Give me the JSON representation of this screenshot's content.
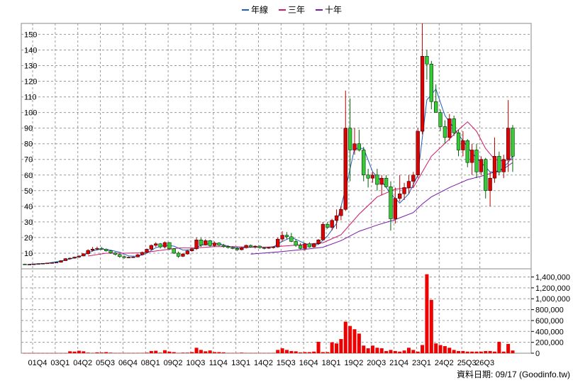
{
  "legend": [
    {
      "label": "年線",
      "color": "#1f5fbf"
    },
    {
      "label": "三年",
      "color": "#d0186a"
    },
    {
      "label": "十年",
      "color": "#7a1aa8"
    }
  ],
  "footer": "資料日期: 09/17  (Goodinfo.tw)",
  "chart_data": {
    "type": "candlestick+bar",
    "price_panel": {
      "ylim": [
        0,
        157
      ],
      "yticks": [
        10,
        20,
        30,
        40,
        50,
        60,
        70,
        80,
        90,
        100,
        110,
        120,
        130,
        140,
        150
      ],
      "grid": true,
      "candles": [
        [
          0,
          3.0,
          3.3,
          2.6,
          2.8
        ],
        [
          1,
          2.8,
          3.0,
          2.6,
          2.9
        ],
        [
          2,
          3.0,
          3.2,
          2.8,
          3.1
        ],
        [
          3,
          3.1,
          3.4,
          3.0,
          3.3
        ],
        [
          4,
          3.3,
          3.6,
          3.1,
          3.5
        ],
        [
          5,
          3.5,
          3.8,
          3.3,
          3.7
        ],
        [
          6,
          3.7,
          4.0,
          3.5,
          3.9
        ],
        [
          7,
          3.9,
          4.4,
          3.7,
          4.2
        ],
        [
          8,
          4.2,
          5.5,
          4.0,
          5.2
        ],
        [
          9,
          5.2,
          6.8,
          5.0,
          6.5
        ],
        [
          10,
          6.5,
          7.2,
          6.0,
          6.8
        ],
        [
          11,
          6.8,
          7.8,
          6.5,
          7.5
        ],
        [
          12,
          7.5,
          8.5,
          7.0,
          8.2
        ],
        [
          13,
          8.2,
          10.0,
          8.0,
          9.6
        ],
        [
          14,
          9.6,
          12.5,
          9.0,
          11.8
        ],
        [
          15,
          11.8,
          14.0,
          11.0,
          12.6
        ],
        [
          16,
          12.6,
          14.2,
          12.0,
          13.1
        ],
        [
          17,
          13.1,
          14.0,
          12.0,
          12.6
        ],
        [
          18,
          12.6,
          13.0,
          11.0,
          11.5
        ],
        [
          19,
          11.5,
          12.0,
          9.6,
          10.2
        ],
        [
          20,
          10.2,
          10.8,
          8.5,
          9.2
        ],
        [
          21,
          9.2,
          9.8,
          7.0,
          7.8
        ],
        [
          22,
          7.8,
          8.5,
          6.5,
          7.2
        ],
        [
          23,
          7.2,
          7.8,
          6.8,
          7.4
        ],
        [
          24,
          7.4,
          8.0,
          7.0,
          7.6
        ],
        [
          25,
          7.6,
          9.5,
          7.3,
          9.0
        ],
        [
          26,
          9.0,
          11.0,
          8.5,
          10.5
        ],
        [
          27,
          10.5,
          13.0,
          10.0,
          12.5
        ],
        [
          28,
          12.5,
          15.5,
          12.0,
          15.0
        ],
        [
          29,
          15.0,
          17.0,
          14.0,
          16.0
        ],
        [
          30,
          16.0,
          16.5,
          13.0,
          14.0
        ],
        [
          31,
          14.0,
          17.5,
          13.0,
          16.8
        ],
        [
          32,
          16.8,
          17.0,
          12.0,
          12.8
        ],
        [
          33,
          12.8,
          13.2,
          9.5,
          10.0
        ],
        [
          34,
          10.0,
          11.0,
          7.0,
          8.0
        ],
        [
          35,
          8.0,
          10.0,
          7.5,
          9.5
        ],
        [
          36,
          9.5,
          12.0,
          9.0,
          11.5
        ],
        [
          37,
          11.5,
          13.5,
          11.0,
          12.8
        ],
        [
          38,
          12.8,
          20.0,
          12.0,
          18.5
        ],
        [
          39,
          18.5,
          19.8,
          14.0,
          15.2
        ],
        [
          40,
          15.2,
          19.0,
          15.0,
          18.0
        ],
        [
          41,
          18.0,
          18.5,
          14.0,
          14.8
        ],
        [
          42,
          14.8,
          17.5,
          14.0,
          16.5
        ],
        [
          43,
          16.5,
          17.0,
          14.5,
          15.0
        ],
        [
          44,
          15.0,
          16.0,
          13.5,
          14.2
        ],
        [
          45,
          14.2,
          15.0,
          13.0,
          13.6
        ],
        [
          46,
          13.6,
          14.5,
          12.5,
          13.0
        ],
        [
          47,
          13.0,
          14.0,
          11.5,
          12.2
        ],
        [
          48,
          12.2,
          14.0,
          11.8,
          13.5
        ],
        [
          49,
          13.5,
          15.5,
          13.0,
          15.0
        ],
        [
          50,
          15.0,
          15.5,
          13.5,
          14.0
        ],
        [
          51,
          14.0,
          15.0,
          13.0,
          14.5
        ],
        [
          52,
          14.5,
          15.0,
          13.0,
          13.5
        ],
        [
          53,
          13.5,
          14.0,
          12.5,
          13.2
        ],
        [
          54,
          13.2,
          14.0,
          12.8,
          13.6
        ],
        [
          55,
          13.6,
          14.5,
          13.0,
          14.0
        ],
        [
          56,
          14.0,
          20.0,
          13.5,
          19.0
        ],
        [
          57,
          19.0,
          24.0,
          17.5,
          21.5
        ],
        [
          58,
          21.5,
          23.5,
          19.0,
          20.5
        ],
        [
          59,
          20.5,
          23.0,
          17.0,
          17.5
        ],
        [
          60,
          17.5,
          19.0,
          14.0,
          15.0
        ],
        [
          61,
          15.0,
          16.5,
          12.5,
          13.0
        ],
        [
          62,
          13.0,
          16.5,
          11.5,
          16.0
        ],
        [
          63,
          16.0,
          17.0,
          13.5,
          14.0
        ],
        [
          64,
          14.0,
          16.5,
          13.5,
          16.0
        ],
        [
          65,
          16.0,
          19.0,
          15.5,
          18.5
        ],
        [
          66,
          18.5,
          30.0,
          18.0,
          28.5
        ],
        [
          67,
          28.5,
          30.0,
          25.5,
          26.5
        ],
        [
          68,
          26.5,
          32.0,
          24.5,
          31.0
        ],
        [
          69,
          31.0,
          38.0,
          25.5,
          34.0
        ],
        [
          70,
          34.0,
          40.0,
          31.0,
          38.0
        ],
        [
          71,
          38.0,
          114.0,
          37.0,
          90.0
        ],
        [
          72,
          90.0,
          109.0,
          56.0,
          76.0
        ],
        [
          73,
          76.0,
          90.0,
          73.0,
          80.0
        ],
        [
          74,
          80.0,
          89.0,
          75.0,
          76.0
        ],
        [
          75,
          76.0,
          78.0,
          56.0,
          60.0
        ],
        [
          76,
          60.0,
          64.0,
          52.0,
          58.0
        ],
        [
          77,
          58.0,
          62.0,
          55.0,
          60.0
        ],
        [
          78,
          60.0,
          64.0,
          50.0,
          54.0
        ],
        [
          79,
          54.0,
          60.0,
          47.0,
          58.0
        ],
        [
          80,
          58.0,
          60.0,
          52.0,
          52.5
        ],
        [
          81,
          52.5,
          56.0,
          24.5,
          32.0
        ],
        [
          82,
          32.0,
          52.0,
          29.0,
          45.0
        ],
        [
          83,
          45.0,
          60.0,
          43.0,
          48.0
        ],
        [
          84,
          48.0,
          55.0,
          44.0,
          52.0
        ],
        [
          85,
          52.0,
          60.0,
          48.0,
          56.0
        ],
        [
          86,
          56.0,
          62.0,
          52.0,
          60.0
        ],
        [
          87,
          60.0,
          90.0,
          58.0,
          88.0
        ],
        [
          88,
          88.0,
          157.0,
          86.0,
          136.0
        ],
        [
          89,
          136.0,
          140.0,
          121.0,
          131.0
        ],
        [
          90,
          131.0,
          133.0,
          102.0,
          107.0
        ],
        [
          91,
          107.0,
          118.0,
          101.0,
          100.0
        ],
        [
          92,
          100.0,
          102.0,
          88.0,
          91.0
        ],
        [
          93,
          91.0,
          95.0,
          80.0,
          84.0
        ],
        [
          94,
          84.0,
          99.0,
          82.0,
          96.0
        ],
        [
          95,
          96.0,
          98.0,
          85.0,
          87.0
        ],
        [
          96,
          87.0,
          89.0,
          72.0,
          76.0
        ],
        [
          97,
          76.0,
          88.0,
          72.0,
          82.0
        ],
        [
          98,
          82.0,
          83.0,
          65.0,
          68.0
        ],
        [
          99,
          68.0,
          80.0,
          60.0,
          76.0
        ],
        [
          100,
          76.0,
          80.0,
          58.0,
          62.0
        ],
        [
          101,
          62.0,
          72.0,
          60.0,
          70.0
        ],
        [
          102,
          70.0,
          71.0,
          45.0,
          50.0
        ],
        [
          103,
          50.0,
          62.0,
          40.0,
          58.0
        ],
        [
          104,
          58.0,
          84.0,
          55.0,
          72.0
        ],
        [
          105,
          72.0,
          75.0,
          60.0,
          62.0
        ],
        [
          106,
          62.0,
          73.0,
          58.0,
          70.0
        ],
        [
          107,
          70.0,
          108.0,
          62.0,
          90.0
        ],
        [
          108,
          90.0,
          92.0,
          62.0,
          72.0
        ]
      ],
      "moving_averages": {
        "年線": [
          [
            1,
            2.9
          ],
          [
            5,
            3.6
          ],
          [
            9,
            5.5
          ],
          [
            13,
            8.7
          ],
          [
            15,
            11.5
          ],
          [
            17,
            12.7
          ],
          [
            19,
            11.9
          ],
          [
            21,
            10.6
          ],
          [
            23,
            8.2
          ],
          [
            25,
            8.0
          ],
          [
            27,
            10.0
          ],
          [
            29,
            13.5
          ],
          [
            31,
            15.0
          ],
          [
            33,
            14.5
          ],
          [
            35,
            12.0
          ],
          [
            37,
            12.3
          ],
          [
            39,
            15.0
          ],
          [
            41,
            16.2
          ],
          [
            43,
            16.0
          ],
          [
            45,
            14.5
          ],
          [
            47,
            13.3
          ],
          [
            49,
            13.6
          ],
          [
            51,
            14.0
          ],
          [
            53,
            13.8
          ],
          [
            55,
            14.0
          ],
          [
            57,
            17.5
          ],
          [
            59,
            20.2
          ],
          [
            61,
            17.5
          ],
          [
            63,
            15.0
          ],
          [
            65,
            15.5
          ],
          [
            67,
            21.0
          ],
          [
            69,
            29.0
          ],
          [
            71,
            51.0
          ],
          [
            73,
            77.0
          ],
          [
            75,
            77.0
          ],
          [
            77,
            62.0
          ],
          [
            79,
            56.0
          ],
          [
            81,
            48.0
          ],
          [
            83,
            42.0
          ],
          [
            85,
            48.0
          ],
          [
            87,
            60.0
          ],
          [
            89,
            108.0
          ],
          [
            91,
            115.0
          ],
          [
            93,
            98.0
          ],
          [
            95,
            90.0
          ],
          [
            97,
            82.0
          ],
          [
            99,
            74.0
          ],
          [
            101,
            68.0
          ],
          [
            103,
            62.0
          ],
          [
            105,
            62.0
          ],
          [
            107,
            68.0
          ],
          [
            108,
            72.0
          ]
        ],
        "三年": [
          [
            14,
            8.2
          ],
          [
            18,
            10.0
          ],
          [
            22,
            10.0
          ],
          [
            26,
            10.2
          ],
          [
            30,
            11.8
          ],
          [
            34,
            13.3
          ],
          [
            38,
            13.4
          ],
          [
            42,
            14.2
          ],
          [
            46,
            14.2
          ],
          [
            50,
            13.9
          ],
          [
            54,
            13.9
          ],
          [
            58,
            14.7
          ],
          [
            62,
            15.6
          ],
          [
            66,
            16.7
          ],
          [
            70,
            21.8
          ],
          [
            74,
            35.0
          ],
          [
            78,
            46.0
          ],
          [
            82,
            51.0
          ],
          [
            86,
            52.0
          ],
          [
            88,
            62.0
          ],
          [
            90,
            72.0
          ],
          [
            94,
            83.0
          ],
          [
            96,
            89.0
          ],
          [
            98,
            94.0
          ],
          [
            100,
            88.0
          ],
          [
            102,
            77.0
          ],
          [
            104,
            70.0
          ],
          [
            106,
            69.0
          ],
          [
            108,
            70.0
          ]
        ],
        "十年": [
          [
            50,
            9.4
          ],
          [
            56,
            10.8
          ],
          [
            62,
            12.5
          ],
          [
            66,
            13.8
          ],
          [
            70,
            18.0
          ],
          [
            74,
            24.0
          ],
          [
            78,
            28.0
          ],
          [
            82,
            31.5
          ],
          [
            86,
            36.0
          ],
          [
            88,
            41.5
          ],
          [
            90,
            46.0
          ],
          [
            94,
            52.0
          ],
          [
            98,
            57.0
          ],
          [
            102,
            60.0
          ],
          [
            106,
            64.0
          ],
          [
            108,
            68.0
          ]
        ]
      }
    },
    "volume_panel": {
      "ylim": [
        0,
        1550000
      ],
      "yticks": [
        0,
        200000,
        400000,
        600000,
        800000,
        1000000,
        1200000,
        1400000
      ],
      "ytick_labels": [
        "0",
        "200,000",
        "400,000",
        "600,000",
        "800,000",
        "1,000,000",
        "1,200,000",
        "1,400,000"
      ],
      "volumes": [
        2000,
        2000,
        2000,
        3000,
        2000,
        2000,
        2000,
        2000,
        2000,
        2000,
        35000,
        30000,
        45000,
        35000,
        10000,
        5000,
        15000,
        12000,
        20000,
        10000,
        5000,
        5000,
        5000,
        5000,
        5000,
        5000,
        6000,
        10000,
        40000,
        45000,
        10000,
        55000,
        30000,
        20000,
        5000,
        10000,
        10000,
        20000,
        100000,
        60000,
        35000,
        50000,
        20000,
        20000,
        15000,
        5000,
        5000,
        5000,
        10000,
        5000,
        5000,
        5000,
        5000,
        5000,
        5000,
        5000,
        60000,
        90000,
        60000,
        40000,
        35000,
        15000,
        20000,
        20000,
        30000,
        210000,
        20000,
        20000,
        200000,
        180000,
        260000,
        580000,
        500000,
        440000,
        360000,
        140000,
        90000,
        140000,
        100000,
        90000,
        40000,
        60000,
        40000,
        30000,
        50000,
        100000,
        60000,
        30000,
        150000,
        1450000,
        980000,
        180000,
        150000,
        130000,
        100000,
        60000,
        40000,
        40000,
        30000,
        30000,
        30000,
        30000,
        40000,
        40000,
        30000,
        210000,
        30000,
        170000,
        50000
      ]
    },
    "x_tick_labels": [
      "01Q4",
      "03Q1",
      "04Q2",
      "05Q3",
      "06Q4",
      "08Q1",
      "09Q2",
      "10Q3",
      "11Q4",
      "13Q1",
      "14Q2",
      "15Q3",
      "16Q4",
      "18Q1",
      "19Q2",
      "20Q3",
      "21Q4",
      "23Q1",
      "24Q2",
      "25Q3",
      "26Q3"
    ],
    "x_tick_positions": [
      0,
      5,
      10,
      15,
      20,
      25,
      30,
      35,
      40,
      45,
      50,
      55,
      60,
      65,
      70,
      75,
      80,
      85,
      90,
      95,
      99
    ]
  }
}
